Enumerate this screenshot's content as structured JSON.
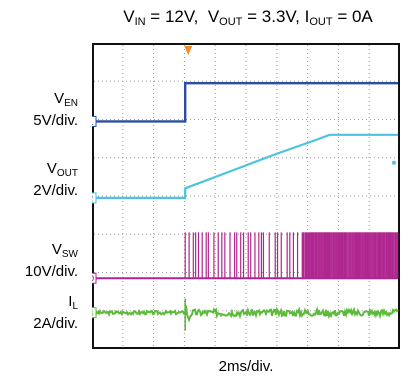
{
  "title": {
    "v_in_label": "V",
    "v_in_sub": "IN",
    "v_in_value": " = 12V,  ",
    "v_out_label": "V",
    "v_out_sub": "OUT",
    "v_out_value": " = 3.3V, ",
    "i_out_label": "I",
    "i_out_sub": "OUT",
    "i_out_value": " = 0A"
  },
  "channels": [
    {
      "name": "V",
      "sub": "EN",
      "scale": "5V/div.",
      "marker": "1",
      "color": "#2b4ea3"
    },
    {
      "name": "V",
      "sub": "OUT",
      "scale": "2V/div.",
      "marker": "2",
      "color": "#4cc3e0"
    },
    {
      "name": "V",
      "sub": "SW",
      "scale": "10V/div.",
      "marker": "D",
      "color": "#b0268f"
    },
    {
      "name": "I",
      "sub": "L",
      "scale": "2A/div.",
      "marker": "4",
      "color": "#5dbb3a"
    }
  ],
  "timebase": "2ms/div.",
  "trigger_marker_color": "#f08a2c",
  "chart_data": {
    "type": "line",
    "x_unit": "ms",
    "x_range": [
      0,
      20
    ],
    "grid": true,
    "series": [
      {
        "name": "V_EN",
        "unit": "V",
        "points": [
          [
            0,
            0
          ],
          [
            6.0,
            0
          ],
          [
            6.0,
            5
          ],
          [
            20,
            5
          ]
        ]
      },
      {
        "name": "V_OUT",
        "unit": "V",
        "points": [
          [
            0,
            0
          ],
          [
            6.0,
            0
          ],
          [
            6.0,
            0.5
          ],
          [
            9,
            1.4
          ],
          [
            12,
            2.3
          ],
          [
            14.5,
            3.0
          ],
          [
            15.5,
            3.3
          ],
          [
            20,
            3.3
          ]
        ]
      },
      {
        "name": "V_SW",
        "unit": "V",
        "switching_start_ms": 6.0,
        "amplitude": 12,
        "points": [
          [
            0,
            0
          ],
          [
            6.0,
            0
          ],
          [
            6.0,
            12
          ],
          [
            20,
            12
          ]
        ]
      },
      {
        "name": "I_L",
        "unit": "A",
        "points": [
          [
            0,
            0
          ],
          [
            6.0,
            0
          ],
          [
            6.0,
            0.6
          ],
          [
            6.2,
            -0.4
          ],
          [
            6.4,
            0
          ],
          [
            20,
            0
          ]
        ]
      }
    ]
  }
}
